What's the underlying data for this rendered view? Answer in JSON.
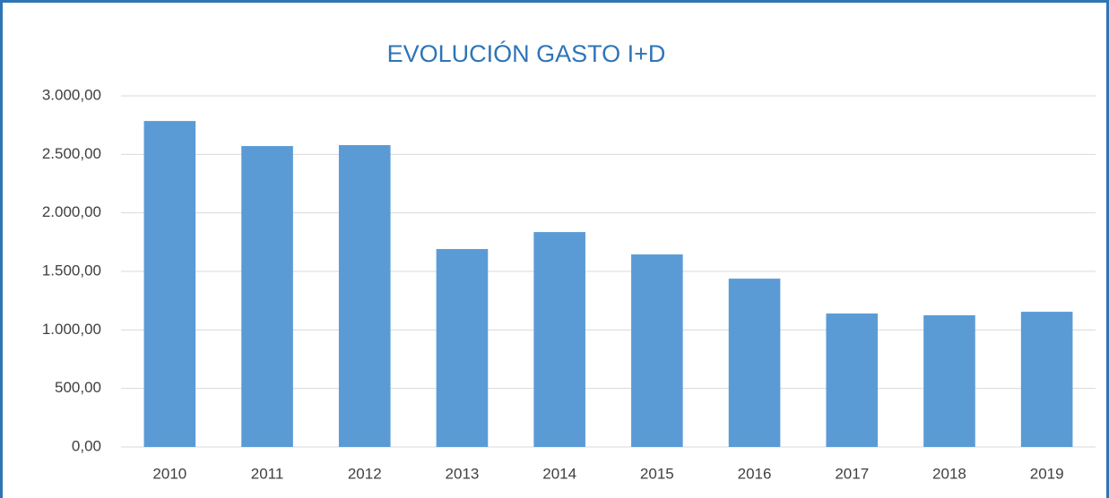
{
  "chart_data": {
    "type": "bar",
    "title": "EVOLUCIÓN GASTO I+D",
    "categories": [
      "2010",
      "2011",
      "2012",
      "2013",
      "2014",
      "2015",
      "2016",
      "2017",
      "2018",
      "2019"
    ],
    "values": [
      2785,
      2571,
      2579,
      1691,
      1836,
      1645,
      1438,
      1140,
      1125,
      1155
    ],
    "color": "#5b9bd5",
    "ylim": [
      0,
      3000
    ],
    "yticks": [
      {
        "value": 0,
        "label": "0,00"
      },
      {
        "value": 500,
        "label": "500,00"
      },
      {
        "value": 1000,
        "label": "1.000,00"
      },
      {
        "value": 1500,
        "label": "1.500,00"
      },
      {
        "value": 2000,
        "label": "2.000,00"
      },
      {
        "value": 2500,
        "label": "2.500,00"
      },
      {
        "value": 3000,
        "label": "3.000,00"
      }
    ],
    "grid": true
  }
}
